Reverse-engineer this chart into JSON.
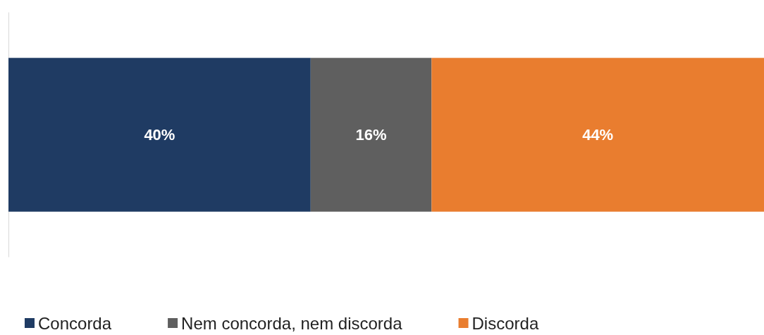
{
  "chart_data": {
    "type": "bar",
    "orientation": "horizontal",
    "stacked": true,
    "categories": [
      null
    ],
    "xlim": [
      0,
      100
    ],
    "tick_labels": false,
    "legend": "bottom left",
    "series": [
      {
        "name": "Concorda",
        "color": "#1f3b63",
        "values": [
          40
        ],
        "value_labels": [
          "40%"
        ]
      },
      {
        "name": "Nem concorda, nem discorda",
        "color": "#5f5f5f",
        "values": [
          16
        ],
        "value_labels": [
          "16%"
        ]
      },
      {
        "name": "Discorda",
        "color": "#e97d2f",
        "values": [
          44
        ],
        "value_labels": [
          "44%"
        ]
      }
    ]
  }
}
